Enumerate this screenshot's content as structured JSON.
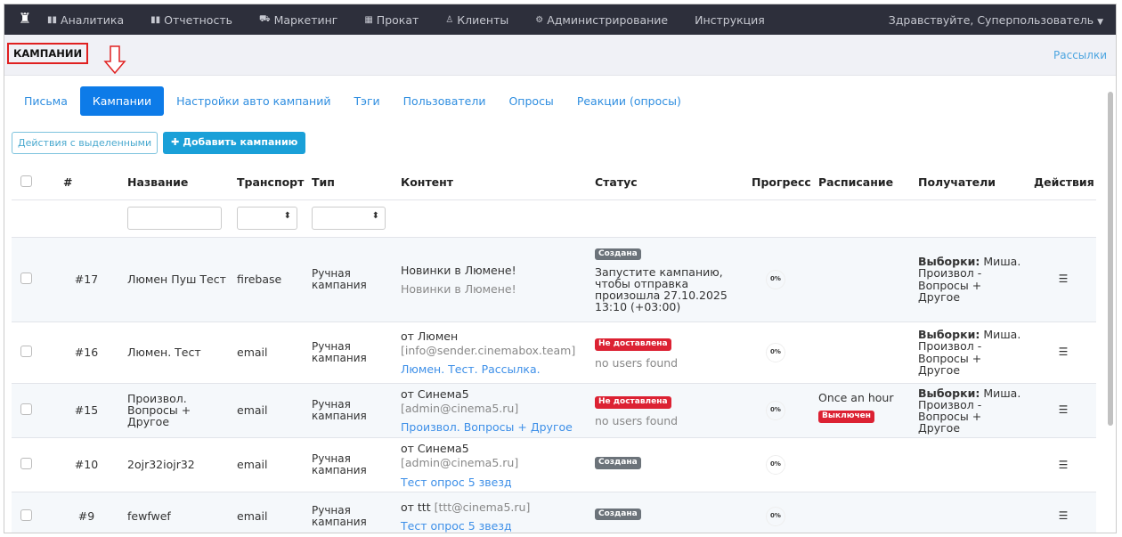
{
  "nav": {
    "items": [
      {
        "icon": "bar-chart-icon",
        "label": "Аналитика"
      },
      {
        "icon": "bar-chart-icon",
        "label": "Отчетность"
      },
      {
        "icon": "cart-icon",
        "label": "Маркетинг"
      },
      {
        "icon": "film-icon",
        "label": "Прокат"
      },
      {
        "icon": "user-icon",
        "label": "Клиенты"
      },
      {
        "icon": "gears-icon",
        "label": "Администрирование"
      },
      {
        "icon": "",
        "label": "Инструкция"
      }
    ],
    "user": "Здравствуйте, Суперпользователь"
  },
  "header": {
    "title": "КАМПАНИИ",
    "breadcrumb": "Рассылки"
  },
  "tabs": [
    {
      "label": "Письма"
    },
    {
      "label": "Кампании",
      "active": true
    },
    {
      "label": "Настройки авто кампаний"
    },
    {
      "label": "Тэги"
    },
    {
      "label": "Пользователи"
    },
    {
      "label": "Опросы"
    },
    {
      "label": "Реакции (опросы)"
    }
  ],
  "toolbar": {
    "bulk": "Действия с выделенными",
    "add": "Добавить кампанию"
  },
  "columns": [
    "#",
    "Название",
    "Транспорт",
    "Тип",
    "Контент",
    "Статус",
    "Прогресс",
    "Расписание",
    "Получатели",
    "Действия"
  ],
  "rows": [
    {
      "id": "#17",
      "name": "Люмен Пуш Тест",
      "transport": "firebase",
      "type": "Ручная кампания",
      "content1": "Новинки в Люмене!",
      "content1b": "",
      "content2": "Новинки в Люмене!",
      "status": "Создана",
      "status_color": "#6c737a",
      "status_note": "Запустите кампанию, чтобы отправка произошла 27.10.2025 13:10 (+03:00)",
      "progress": "0%",
      "schedule": "",
      "schedule_badge": "",
      "recipients_label": "Выборки:",
      "recipients": "Миша. Произвол - Вопросы + Другое"
    },
    {
      "id": "#16",
      "name": "Люмен. Тест",
      "transport": "email",
      "type": "Ручная кампания",
      "content1": "от Люмен",
      "content1b": "[info@sender.cinemabox.team]",
      "content2": "Люмен. Тест. Рассылка.",
      "status": "Не доставлена",
      "status_color": "#dc2233",
      "status_note": "no users found",
      "progress": "0%",
      "schedule": "",
      "schedule_badge": "",
      "recipients_label": "Выборки:",
      "recipients": "Миша. Произвол - Вопросы + Другое"
    },
    {
      "id": "#15",
      "name": "Произвол. Вопросы + Другое",
      "transport": "email",
      "type": "Ручная кампания",
      "content1": "от Синема5",
      "content1b": "[admin@cinema5.ru]",
      "content2": "Произвол. Вопросы + Другое",
      "status": "Не доставлена",
      "status_color": "#dc2233",
      "status_note": "no users found",
      "progress": "0%",
      "schedule": "Once an hour",
      "schedule_badge": "Выключен",
      "recipients_label": "Выборки:",
      "recipients": "Миша. Произвол - Вопросы + Другое"
    },
    {
      "id": "#10",
      "name": "2ojr32iojr32",
      "transport": "email",
      "type": "Ручная кампания",
      "content1": "от Синема5",
      "content1b": "[admin@cinema5.ru]",
      "content2": "Тест опрос 5 звезд",
      "status": "Создана",
      "status_color": "#6c737a",
      "status_note": "",
      "progress": "0%",
      "schedule": "",
      "schedule_badge": "",
      "recipients_label": "",
      "recipients": ""
    },
    {
      "id": "#9",
      "name": "fewfwef",
      "transport": "email",
      "type": "Ручная кампания",
      "content1": "от ttt",
      "content1b": "[ttt@cinema5.ru]",
      "content2": "Тест опрос 5 звезд",
      "status": "Создана",
      "status_color": "#6c737a",
      "status_note": "",
      "progress": "0%",
      "schedule": "",
      "schedule_badge": "",
      "recipients_label": "",
      "recipients": ""
    }
  ]
}
